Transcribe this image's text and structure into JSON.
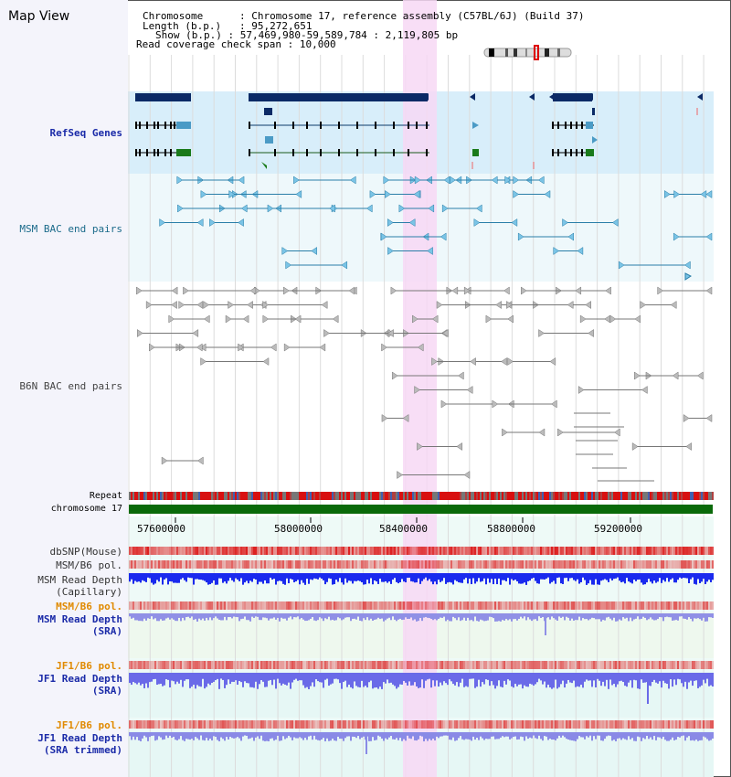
{
  "title": "Map View",
  "info": {
    "chromosome_label": "Chromosome",
    "chromosome_value": "Chromosome 17, reference assembly (C57BL/6J) (Build 37)",
    "length_label": "Length (b.p.)",
    "length_value": "95,272,651",
    "show_label": "Show (b.p.)",
    "show_value": "57,469,980-59,589,784 : 2,119,805 bp",
    "read_cov_label": "Read coverage check span",
    "read_cov_value": "10,000"
  },
  "tracks": {
    "refseq": "RefSeq Genes",
    "msm_bac": "MSM BAC end pairs",
    "b6n_bac": "B6N BAC end pairs",
    "repeat": "Repeat",
    "chromosome": "chromosome 17",
    "dbsnp": "dbSNP(Mouse)",
    "msm_b6_pol_1": "MSM/B6 pol.",
    "msm_read_cap_1": "MSM Read Depth",
    "msm_read_cap_2": "(Capillary)",
    "msm_b6_pol_2": "MSM/B6 pol.",
    "msm_read_sra_1": "MSM Read Depth",
    "msm_read_sra_2": "(SRA)",
    "jf1_b6_pol_1": "JF1/B6 pol.",
    "jf1_read_sra_1": "JF1 Read Depth",
    "jf1_read_sra_2": "(SRA)",
    "jf1_b6_pol_2": "JF1/B6 pol.",
    "jf1_read_trim_1": "JF1 Read Depth",
    "jf1_read_trim_2": "(SRA trimmed)"
  },
  "axis_ticks": [
    "57600000",
    "58000000",
    "58400000",
    "58800000",
    "59200000"
  ],
  "colors": {
    "refseq_bg": "#d8eefa",
    "msm_bg": "#eef8fb",
    "highlight": "#f7d8f4",
    "gene_dark": "#0b2a66",
    "gene_blue": "#4b9bc6",
    "gene_green": "#1a7a1a",
    "msm_line": "#2a7ea8",
    "b6n_line": "#777777",
    "label_blue": "#1a2aa8",
    "label_teal": "#1a6a8a",
    "label_orange": "#e08a00",
    "chromosome_green": "#0a6a0a"
  }
}
